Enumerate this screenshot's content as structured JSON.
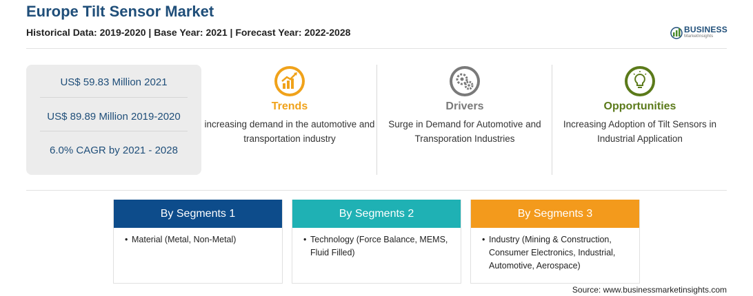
{
  "header": {
    "title": "Europe Tilt Sensor Market",
    "subtitle": "Historical Data: 2019-2020 | Base Year: 2021 | Forecast Year: 2022-2028"
  },
  "logo": {
    "name": "BUSINESS",
    "tagline": "MarketInsights"
  },
  "stats": [
    "US$ 59.83 Million 2021",
    "US$ 89.89 Million 2019-2020",
    "6.0% CAGR by 2021 - 2028"
  ],
  "features": [
    {
      "title": "Trends",
      "description": "increasing demand in the automotive and transportation industry",
      "color": "#f0a21a",
      "icon": "growth-chart-icon"
    },
    {
      "title": "Drivers",
      "description": "Surge in Demand for Automotive and Transporation Industries",
      "color": "#7a7a7a",
      "icon": "gears-icon"
    },
    {
      "title": "Opportunities",
      "description": "Increasing Adoption of Tilt Sensors in Industrial Application",
      "color": "#5b7a1a",
      "icon": "lightbulb-icon"
    }
  ],
  "segments": [
    {
      "title": "By Segments 1",
      "bullet": "•",
      "text": "Material (Metal, Non-Metal)",
      "color": "#0d4c8b"
    },
    {
      "title": "By Segments 2",
      "bullet": "•",
      "text": "Technology (Force Balance, MEMS, Fluid Filled)",
      "color": "#1fb1b4"
    },
    {
      "title": "By Segments 3",
      "bullet": "•",
      "text": "Industry (Mining & Construction, Consumer Electronics, Industrial, Automotive, Aerospace)",
      "color": "#f39a1c"
    }
  ],
  "footer": {
    "source": "Source: www.businessmarketinsights.com"
  }
}
